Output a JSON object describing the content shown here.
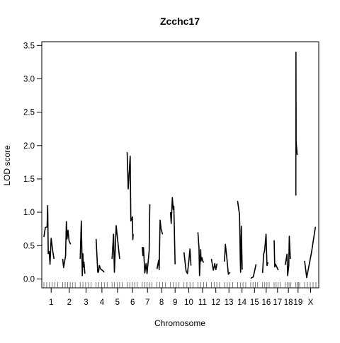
{
  "chart_data": {
    "type": "line",
    "title": "Zcchc17",
    "xlabel": "Chromosome",
    "ylabel": "LOD score",
    "ylim": [
      0,
      3.5
    ],
    "yticks": [
      "0.0",
      "0.5",
      "1.0",
      "1.5",
      "2.0",
      "2.5",
      "3.0",
      "3.5"
    ],
    "grid": false,
    "legend": "none",
    "line_color": "#000000",
    "chromosomes": [
      {
        "name": "1",
        "points": [
          [
            0,
            0.63
          ],
          [
            0.1,
            0.77
          ],
          [
            0.22,
            0.78
          ],
          [
            0.26,
            1.1
          ],
          [
            0.3,
            0.38
          ],
          [
            0.36,
            0.41
          ],
          [
            0.42,
            0.22
          ],
          [
            0.5,
            0.61
          ],
          [
            0.62,
            0.4
          ],
          [
            0.7,
            0.3
          ]
        ]
      },
      {
        "name": "2",
        "points": [
          [
            0,
            0.3
          ],
          [
            0.07,
            0.17
          ],
          [
            0.22,
            0.35
          ],
          [
            0.28,
            0.86
          ],
          [
            0.33,
            0.6
          ],
          [
            0.4,
            0.73
          ],
          [
            0.48,
            0.57
          ],
          [
            0.6,
            0.52
          ]
        ]
      },
      {
        "name": "3",
        "points": [
          [
            0,
            0.3
          ],
          [
            0.1,
            0.87
          ],
          [
            0.18,
            0.05
          ],
          [
            0.23,
            0.38
          ],
          [
            0.28,
            0.18
          ],
          [
            0.33,
            0.25
          ],
          [
            0.4,
            0.08
          ]
        ]
      },
      {
        "name": "4",
        "points": [
          [
            0,
            0.6
          ],
          [
            0.14,
            0.1
          ],
          [
            0.2,
            0.1
          ],
          [
            0.28,
            0.2
          ],
          [
            0.38,
            0.15
          ],
          [
            0.6,
            0.12
          ],
          [
            0.7,
            0.1
          ]
        ]
      },
      {
        "name": "5",
        "points": [
          [
            0,
            0.3
          ],
          [
            0.14,
            0.67
          ],
          [
            0.22,
            0.1
          ],
          [
            0.38,
            0.8
          ],
          [
            0.7,
            0.3
          ]
        ]
      },
      {
        "name": "6",
        "points": [
          [
            0,
            1.9
          ],
          [
            0.1,
            1.35
          ],
          [
            0.28,
            1.84
          ],
          [
            0.34,
            0.87
          ],
          [
            0.48,
            0.93
          ],
          [
            0.52,
            0.59
          ],
          [
            0.56,
            0.67
          ]
        ]
      },
      {
        "name": "7",
        "points": [
          [
            0,
            0.48
          ],
          [
            0.06,
            0.35
          ],
          [
            0.12,
            0.47
          ],
          [
            0.24,
            0.09
          ],
          [
            0.36,
            0.23
          ],
          [
            0.46,
            0.08
          ],
          [
            0.66,
            0.42
          ],
          [
            0.72,
            1.12
          ]
        ]
      },
      {
        "name": "8",
        "points": [
          [
            0,
            0.15
          ],
          [
            0.18,
            0.28
          ],
          [
            0.24,
            0.14
          ],
          [
            0.34,
            0.88
          ],
          [
            0.44,
            0.75
          ],
          [
            0.6,
            0.67
          ]
        ]
      },
      {
        "name": "9",
        "points": [
          [
            0,
            1.0
          ],
          [
            0.08,
            0.83
          ],
          [
            0.2,
            1.22
          ],
          [
            0.3,
            1.04
          ],
          [
            0.36,
            1.09
          ],
          [
            0.5,
            0.22
          ]
        ]
      },
      {
        "name": "10",
        "points": [
          [
            0,
            0.4
          ],
          [
            0.22,
            0.12
          ],
          [
            0.36,
            0.08
          ],
          [
            0.5,
            0.27
          ],
          [
            0.62,
            0.45
          ],
          [
            0.72,
            0.2
          ]
        ]
      },
      {
        "name": "11",
        "points": [
          [
            0,
            0.7
          ],
          [
            0.12,
            0.47
          ],
          [
            0.18,
            0.05
          ],
          [
            0.3,
            0.44
          ],
          [
            0.34,
            0.27
          ],
          [
            0.44,
            0.32
          ],
          [
            0.54,
            0.26
          ],
          [
            0.66,
            0.25
          ]
        ]
      },
      {
        "name": "12",
        "points": [
          [
            0,
            0.3
          ],
          [
            0.22,
            0.13
          ],
          [
            0.38,
            0.23
          ],
          [
            0.5,
            0.14
          ],
          [
            0.64,
            0.23
          ]
        ]
      },
      {
        "name": "13",
        "points": [
          [
            0,
            0.26
          ],
          [
            0.1,
            0.52
          ],
          [
            0.28,
            0.3
          ],
          [
            0.44,
            0.07
          ],
          [
            0.62,
            0.1
          ]
        ]
      },
      {
        "name": "14",
        "points": [
          [
            0,
            1.17
          ],
          [
            0.22,
            0.96
          ],
          [
            0.3,
            0.3
          ],
          [
            0.34,
            0.1
          ],
          [
            0.42,
            0.79
          ],
          [
            0.52,
            0.14
          ]
        ]
      },
      {
        "name": "15",
        "points": [
          [
            0,
            0.01
          ],
          [
            0.34,
            0.03
          ],
          [
            0.7,
            0.22
          ]
        ]
      },
      {
        "name": "16",
        "points": [
          [
            0,
            0.09
          ],
          [
            0.14,
            0.37
          ],
          [
            0.28,
            0.43
          ],
          [
            0.48,
            0.67
          ],
          [
            0.6,
            0.2
          ],
          [
            0.74,
            0.25
          ]
        ]
      },
      {
        "name": "17",
        "points": [
          [
            0,
            0.58
          ],
          [
            0.1,
            0.18
          ],
          [
            0.22,
            0.22
          ],
          [
            0.44,
            0.17
          ],
          [
            0.62,
            0.13
          ]
        ]
      },
      {
        "name": "18",
        "points": [
          [
            0,
            0.21
          ],
          [
            0.28,
            0.37
          ],
          [
            0.38,
            0.05
          ],
          [
            0.56,
            0.2
          ],
          [
            0.64,
            0.64
          ],
          [
            0.8,
            0.3
          ]
        ]
      },
      {
        "name": "19",
        "points": [
          [
            0,
            1.25
          ],
          [
            0.02,
            3.4
          ],
          [
            0.06,
            2.05
          ],
          [
            0.3,
            1.86
          ]
        ]
      },
      {
        "name": "X",
        "points": [
          [
            0,
            0.27
          ],
          [
            0.18,
            0.02
          ],
          [
            0.58,
            0.4
          ],
          [
            0.9,
            0.78
          ]
        ]
      }
    ]
  }
}
